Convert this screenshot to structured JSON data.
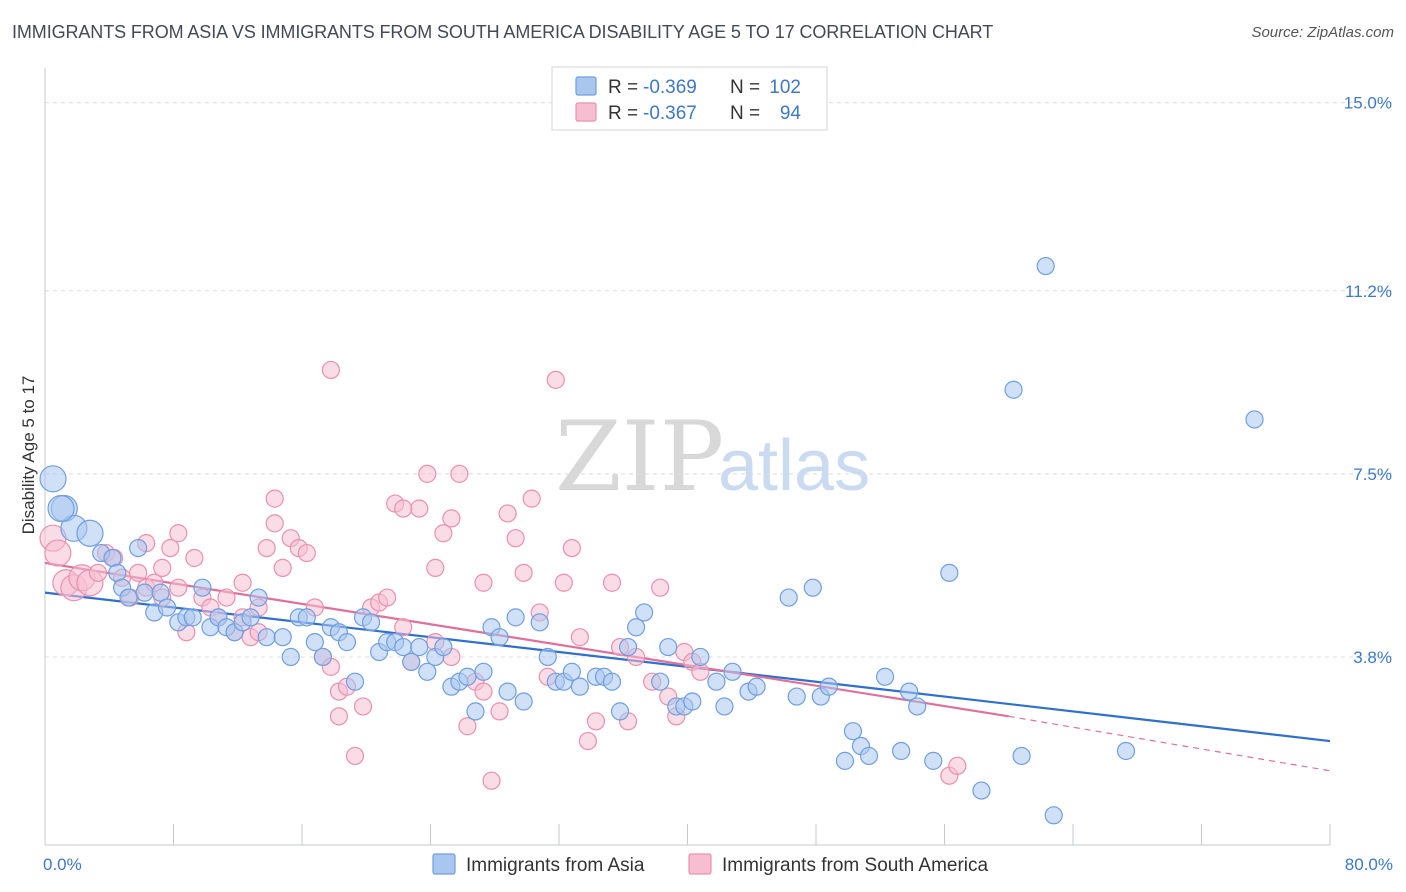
{
  "header": {
    "title": "IMMIGRANTS FROM ASIA VS IMMIGRANTS FROM SOUTH AMERICA DISABILITY AGE 5 TO 17 CORRELATION CHART",
    "source": "Source: ZipAtlas.com"
  },
  "watermark": {
    "zip": "ZIP",
    "atlas": "atlas"
  },
  "colors": {
    "asia_fill": "#a9c7ee",
    "asia_stroke": "#6f9fe0",
    "asia_line": "#2f6fcf",
    "sa_fill": "#f6bfd1",
    "sa_stroke": "#ec8fb0",
    "sa_line": "#e0709a",
    "grid": "#d9dce3",
    "axis_label": "#3e78c8"
  },
  "legend": {
    "items": [
      {
        "r_label": "R = ",
        "r_value": "-0.369",
        "n_label": "N = ",
        "n_value": "102",
        "series": "asia"
      },
      {
        "r_label": "R = ",
        "r_value": "-0.367",
        "n_label": "N = ",
        "n_value": "94",
        "series": "south_america"
      }
    ]
  },
  "chart_data": {
    "type": "scatter",
    "title": "IMMIGRANTS FROM ASIA VS IMMIGRANTS FROM SOUTH AMERICA DISABILITY AGE 5 TO 17 CORRELATION CHART",
    "xlabel": "",
    "ylabel": "Disability Age 5 to 17",
    "xlim": [
      0,
      80
    ],
    "ylim": [
      0,
      15.5
    ],
    "x_tick_labels": [
      "0.0%",
      "80.0%"
    ],
    "y_ticks": [
      3.8,
      7.5,
      11.2,
      15.0
    ],
    "y_tick_labels": [
      "3.8%",
      "7.5%",
      "11.2%",
      "15.0%"
    ],
    "grid": "horizontal-dashed",
    "legend_position": "top-center",
    "series": [
      {
        "name": "Immigrants from Asia",
        "key": "asia",
        "trend": {
          "x": [
            0,
            80
          ],
          "y": [
            5.1,
            2.1
          ]
        },
        "points": [
          [
            0.5,
            7.4
          ],
          [
            1.2,
            6.8
          ],
          [
            1.8,
            6.4
          ],
          [
            2.8,
            6.3
          ],
          [
            3.5,
            5.9
          ],
          [
            4.2,
            5.8
          ],
          [
            4.5,
            5.5
          ],
          [
            4.8,
            5.2
          ],
          [
            5.2,
            5.0
          ],
          [
            5.8,
            6.0
          ],
          [
            6.2,
            5.1
          ],
          [
            6.8,
            4.7
          ],
          [
            7.2,
            5.1
          ],
          [
            7.6,
            4.8
          ],
          [
            8.3,
            4.5
          ],
          [
            8.8,
            4.6
          ],
          [
            9.2,
            4.6
          ],
          [
            9.8,
            5.2
          ],
          [
            10.3,
            4.4
          ],
          [
            10.8,
            4.6
          ],
          [
            11.3,
            4.4
          ],
          [
            11.8,
            4.3
          ],
          [
            12.3,
            4.5
          ],
          [
            12.8,
            4.6
          ],
          [
            13.3,
            5.0
          ],
          [
            13.8,
            4.2
          ],
          [
            14.8,
            4.2
          ],
          [
            15.3,
            3.8
          ],
          [
            15.8,
            4.6
          ],
          [
            16.3,
            4.6
          ],
          [
            16.8,
            4.1
          ],
          [
            17.3,
            3.8
          ],
          [
            17.8,
            4.4
          ],
          [
            18.3,
            4.3
          ],
          [
            18.8,
            4.1
          ],
          [
            19.3,
            3.3
          ],
          [
            19.8,
            4.6
          ],
          [
            20.3,
            4.5
          ],
          [
            20.8,
            3.9
          ],
          [
            21.3,
            4.1
          ],
          [
            21.8,
            4.1
          ],
          [
            22.3,
            4.0
          ],
          [
            22.8,
            3.7
          ],
          [
            23.3,
            4.0
          ],
          [
            23.8,
            3.5
          ],
          [
            24.3,
            3.8
          ],
          [
            24.8,
            4.0
          ],
          [
            25.3,
            3.2
          ],
          [
            25.8,
            3.3
          ],
          [
            26.3,
            3.4
          ],
          [
            26.8,
            2.7
          ],
          [
            27.3,
            3.5
          ],
          [
            27.8,
            4.4
          ],
          [
            28.3,
            4.2
          ],
          [
            28.8,
            3.1
          ],
          [
            29.3,
            4.6
          ],
          [
            29.8,
            2.9
          ],
          [
            30.8,
            4.5
          ],
          [
            31.3,
            3.8
          ],
          [
            31.8,
            3.3
          ],
          [
            32.3,
            3.3
          ],
          [
            32.8,
            3.5
          ],
          [
            33.3,
            3.2
          ],
          [
            34.3,
            3.4
          ],
          [
            34.8,
            3.4
          ],
          [
            35.3,
            3.3
          ],
          [
            35.8,
            2.7
          ],
          [
            36.3,
            4.0
          ],
          [
            36.8,
            4.4
          ],
          [
            37.3,
            4.7
          ],
          [
            38.3,
            3.3
          ],
          [
            38.8,
            4.0
          ],
          [
            39.3,
            2.8
          ],
          [
            39.8,
            2.8
          ],
          [
            40.3,
            2.9
          ],
          [
            40.8,
            3.8
          ],
          [
            41.8,
            3.3
          ],
          [
            42.3,
            2.8
          ],
          [
            42.8,
            3.5
          ],
          [
            43.8,
            3.1
          ],
          [
            44.3,
            3.2
          ],
          [
            46.3,
            5.0
          ],
          [
            46.8,
            3.0
          ],
          [
            47.8,
            5.2
          ],
          [
            48.3,
            3.0
          ],
          [
            48.8,
            3.2
          ],
          [
            49.8,
            1.7
          ],
          [
            50.3,
            2.3
          ],
          [
            50.8,
            2.0
          ],
          [
            51.3,
            1.8
          ],
          [
            52.3,
            3.4
          ],
          [
            53.3,
            1.9
          ],
          [
            53.8,
            3.1
          ],
          [
            54.3,
            2.8
          ],
          [
            55.3,
            1.7
          ],
          [
            56.3,
            5.5
          ],
          [
            58.3,
            1.1
          ],
          [
            60.3,
            9.2
          ],
          [
            60.8,
            1.8
          ],
          [
            62.3,
            11.7
          ],
          [
            62.8,
            0.6
          ],
          [
            67.3,
            1.9
          ],
          [
            75.3,
            8.6
          ],
          [
            1.0,
            6.8
          ]
        ]
      },
      {
        "name": "Immigrants from South America",
        "key": "south_america",
        "trend": {
          "x": [
            0,
            60
          ],
          "y": [
            5.7,
            2.6
          ]
        },
        "trend_extension": {
          "x": [
            60,
            80
          ],
          "y": [
            2.6,
            1.5
          ]
        },
        "points": [
          [
            0.5,
            6.2
          ],
          [
            0.8,
            5.9
          ],
          [
            1.3,
            5.3
          ],
          [
            1.8,
            5.2
          ],
          [
            2.3,
            5.4
          ],
          [
            2.8,
            5.3
          ],
          [
            3.3,
            5.5
          ],
          [
            3.8,
            5.9
          ],
          [
            4.3,
            5.8
          ],
          [
            4.8,
            5.4
          ],
          [
            5.3,
            5.0
          ],
          [
            5.8,
            5.5
          ],
          [
            6.3,
            5.2
          ],
          [
            6.8,
            5.3
          ],
          [
            7.3,
            5.0
          ],
          [
            7.8,
            6.0
          ],
          [
            8.3,
            5.2
          ],
          [
            8.8,
            4.3
          ],
          [
            9.3,
            5.8
          ],
          [
            9.8,
            5.0
          ],
          [
            10.3,
            4.8
          ],
          [
            10.8,
            4.6
          ],
          [
            11.3,
            5.0
          ],
          [
            11.8,
            4.3
          ],
          [
            12.3,
            4.6
          ],
          [
            12.8,
            4.2
          ],
          [
            13.3,
            4.8
          ],
          [
            13.8,
            6.0
          ],
          [
            14.3,
            6.5
          ],
          [
            14.8,
            5.6
          ],
          [
            15.3,
            6.2
          ],
          [
            15.8,
            6.0
          ],
          [
            16.3,
            5.9
          ],
          [
            16.8,
            4.8
          ],
          [
            17.3,
            3.8
          ],
          [
            17.8,
            3.6
          ],
          [
            18.3,
            3.1
          ],
          [
            18.8,
            3.2
          ],
          [
            19.3,
            1.8
          ],
          [
            19.8,
            2.8
          ],
          [
            20.3,
            4.8
          ],
          [
            20.8,
            4.9
          ],
          [
            21.3,
            5.0
          ],
          [
            21.8,
            6.9
          ],
          [
            22.3,
            4.4
          ],
          [
            22.8,
            3.7
          ],
          [
            23.3,
            6.8
          ],
          [
            23.8,
            7.5
          ],
          [
            24.3,
            5.6
          ],
          [
            24.8,
            6.3
          ],
          [
            25.3,
            6.6
          ],
          [
            25.8,
            7.5
          ],
          [
            26.3,
            2.4
          ],
          [
            26.8,
            3.3
          ],
          [
            27.3,
            5.3
          ],
          [
            27.8,
            1.3
          ],
          [
            28.3,
            2.7
          ],
          [
            28.8,
            6.7
          ],
          [
            29.3,
            6.2
          ],
          [
            29.8,
            5.5
          ],
          [
            30.3,
            7.0
          ],
          [
            30.8,
            4.7
          ],
          [
            31.3,
            3.4
          ],
          [
            31.8,
            9.4
          ],
          [
            32.3,
            5.3
          ],
          [
            32.8,
            6.0
          ],
          [
            33.3,
            4.2
          ],
          [
            33.8,
            2.1
          ],
          [
            34.3,
            2.5
          ],
          [
            35.3,
            5.3
          ],
          [
            35.8,
            4.0
          ],
          [
            36.3,
            2.5
          ],
          [
            36.8,
            3.8
          ],
          [
            37.8,
            3.3
          ],
          [
            38.3,
            5.2
          ],
          [
            38.8,
            3.0
          ],
          [
            39.3,
            2.6
          ],
          [
            39.8,
            3.9
          ],
          [
            40.3,
            3.7
          ],
          [
            40.8,
            3.5
          ],
          [
            17.8,
            9.6
          ],
          [
            14.3,
            7.0
          ],
          [
            8.3,
            6.3
          ],
          [
            7.3,
            5.6
          ],
          [
            6.3,
            6.1
          ],
          [
            12.3,
            5.3
          ],
          [
            13.3,
            4.3
          ],
          [
            18.3,
            2.6
          ],
          [
            22.3,
            6.8
          ],
          [
            24.3,
            4.1
          ],
          [
            25.3,
            3.8
          ],
          [
            56.3,
            1.4
          ],
          [
            56.8,
            1.6
          ],
          [
            27.3,
            3.1
          ]
        ]
      }
    ]
  },
  "bottom_legend": {
    "items": [
      {
        "label": "Immigrants from Asia",
        "series": "asia"
      },
      {
        "label": "Immigrants from South America",
        "series": "south_america"
      }
    ]
  }
}
